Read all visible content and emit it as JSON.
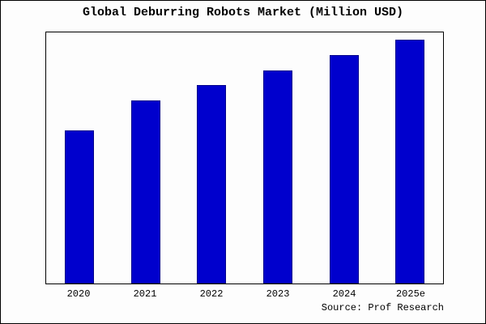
{
  "chart_data": {
    "type": "bar",
    "title": "Global Deburring Robots Market (Million USD)",
    "categories": [
      "2020",
      "2021",
      "2022",
      "2023",
      "2024",
      "2025e"
    ],
    "values": [
      61,
      73,
      79,
      85,
      91,
      97
    ],
    "xlabel": "",
    "ylabel": "",
    "ylim": [
      0,
      100
    ],
    "grid": false,
    "legend": "none",
    "bar_color": "#0000CD",
    "bar_border_color": "#00008B"
  },
  "footer": {
    "source": "Source: Prof Research"
  }
}
